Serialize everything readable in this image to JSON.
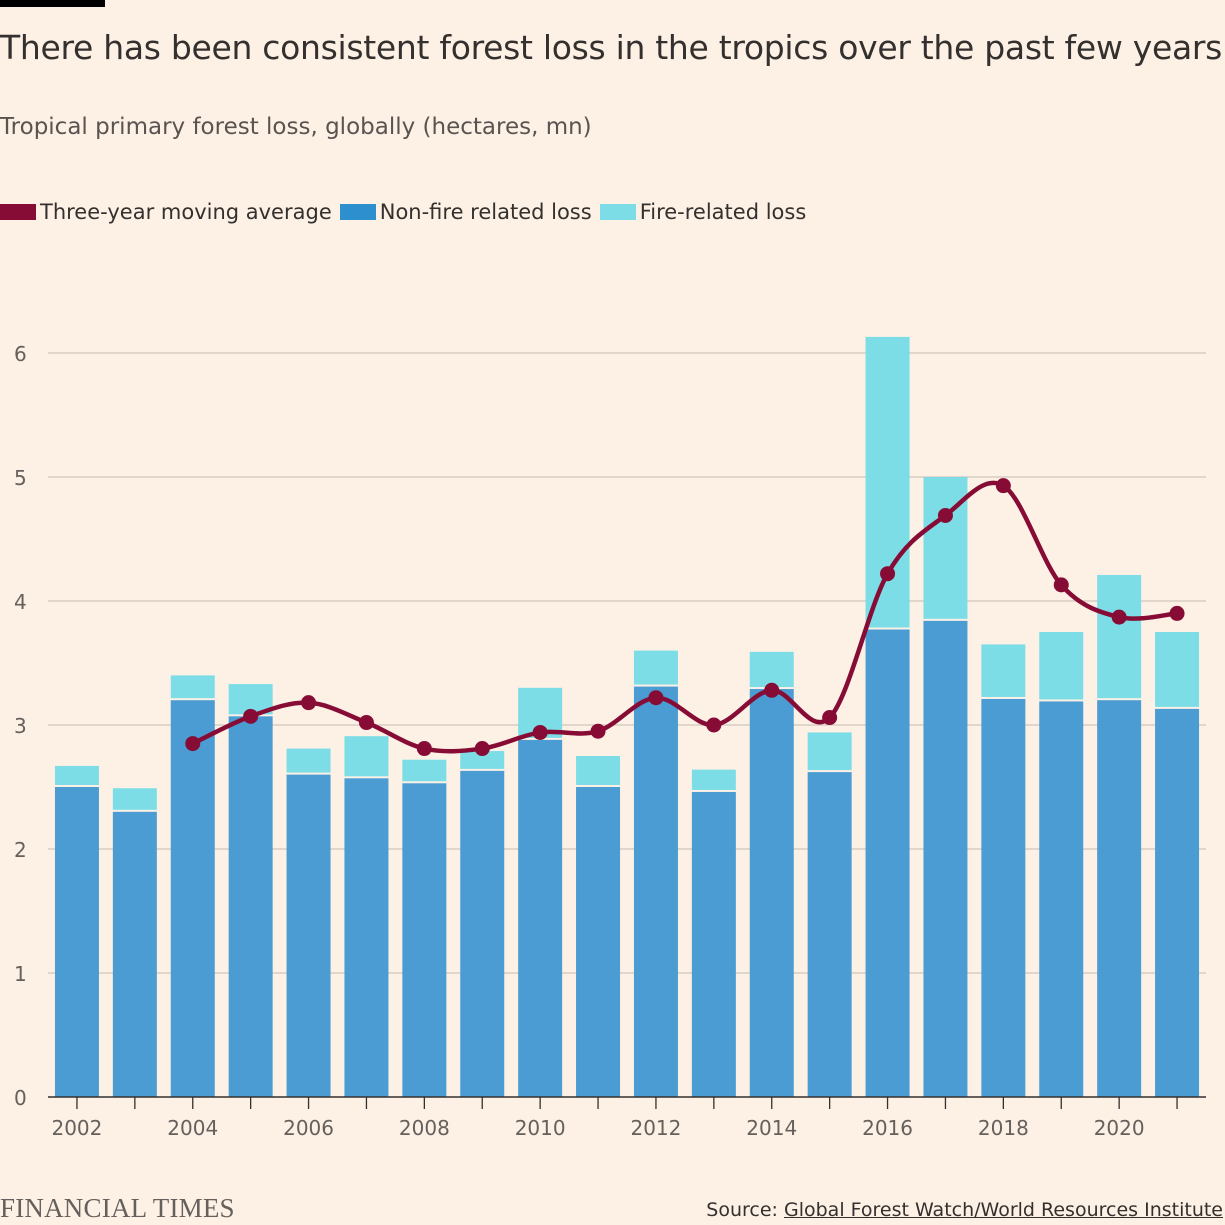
{
  "header": {
    "title": "There has been consistent forest loss in the tropics over the past few years",
    "subtitle": "Tropical primary forest loss, globally (hectares, mn)"
  },
  "legend": {
    "items": [
      {
        "label": "Three-year moving average",
        "color": "#870c35"
      },
      {
        "label": "Non-fire related loss",
        "color": "#2e8fcf"
      },
      {
        "label": "Fire-related loss",
        "color": "#7cdde6"
      }
    ]
  },
  "chart_data": {
    "type": "bar",
    "stacked": true,
    "categories": [
      "2002",
      "2003",
      "2004",
      "2005",
      "2006",
      "2007",
      "2008",
      "2009",
      "2010",
      "2011",
      "2012",
      "2013",
      "2014",
      "2015",
      "2016",
      "2017",
      "2018",
      "2019",
      "2020",
      "2021"
    ],
    "series": [
      {
        "name": "Non-fire related loss",
        "color": "#2e8fcf",
        "values": [
          2.5,
          2.3,
          3.2,
          3.07,
          2.6,
          2.57,
          2.53,
          2.63,
          2.88,
          2.5,
          3.31,
          2.46,
          3.29,
          2.62,
          3.77,
          3.84,
          3.21,
          3.19,
          3.2,
          3.13
        ]
      },
      {
        "name": "Fire-related loss",
        "color": "#7cdde6",
        "values": [
          0.17,
          0.19,
          0.2,
          0.26,
          0.21,
          0.34,
          0.19,
          0.16,
          0.42,
          0.25,
          0.29,
          0.18,
          0.3,
          0.32,
          2.36,
          1.16,
          0.44,
          0.56,
          1.01,
          0.62
        ]
      },
      {
        "name": "Three-year moving average",
        "color": "#870c35",
        "type": "line",
        "x": [
          "2004",
          "2005",
          "2006",
          "2007",
          "2008",
          "2009",
          "2010",
          "2011",
          "2012",
          "2013",
          "2014",
          "2015",
          "2016",
          "2017",
          "2018",
          "2019",
          "2020",
          "2021"
        ],
        "values": [
          2.85,
          3.07,
          3.18,
          3.02,
          2.81,
          2.81,
          2.94,
          2.95,
          3.22,
          3.0,
          3.28,
          3.06,
          4.22,
          4.69,
          4.93,
          4.13,
          3.87,
          3.9
        ]
      }
    ],
    "ylim": [
      0,
      6.2
    ],
    "yticks": [
      0,
      1,
      2,
      3,
      4,
      5,
      6
    ],
    "xtick_labels": [
      "2002",
      "2004",
      "2006",
      "2008",
      "2010",
      "2012",
      "2014",
      "2016",
      "2018",
      "2020"
    ],
    "grid": true,
    "legend_position": "top-left"
  },
  "footer": {
    "logo": "FINANCIAL TIMES",
    "source_prefix": "Source: ",
    "source_link": "Global Forest Watch/World Resources Institute"
  }
}
